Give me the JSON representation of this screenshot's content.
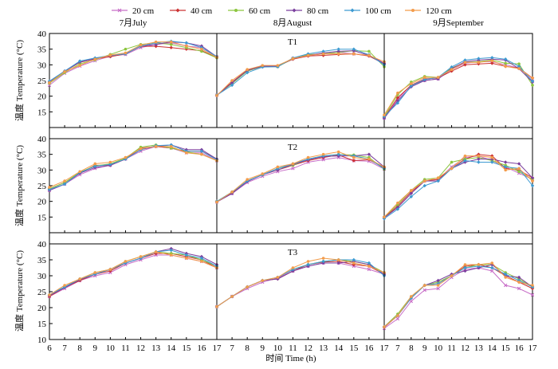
{
  "chart_data": {
    "type": "line",
    "legend_position": "top",
    "grid": false,
    "x_ticks": [
      6,
      7,
      8,
      9,
      10,
      11,
      12,
      13,
      14,
      15,
      16,
      17
    ],
    "ylim": [
      10,
      40
    ],
    "y_ticks": [
      10,
      15,
      20,
      25,
      30,
      35,
      40
    ],
    "xlabel": "时间 Time (h)",
    "ylabel": "温度 Temperature (°C)",
    "column_titles": [
      "7月July",
      "8月August",
      "9月September"
    ],
    "row_titles": [
      "T1",
      "T2",
      "T3"
    ],
    "series": [
      {
        "name": "20 cm",
        "color": "#c86fc8",
        "marker": "x"
      },
      {
        "name": "40 cm",
        "color": "#cc3333",
        "marker": "diamond"
      },
      {
        "name": "60 cm",
        "color": "#8cc63f",
        "marker": "circle"
      },
      {
        "name": "80 cm",
        "color": "#7b3f9e",
        "marker": "diamond"
      },
      {
        "name": "100 cm",
        "color": "#3d9ad1",
        "marker": "diamond"
      },
      {
        "name": "120 cm",
        "color": "#f39c4b",
        "marker": "circle"
      }
    ],
    "panels": [
      {
        "row": "T1",
        "column": "7月July",
        "x": [
          6,
          7,
          8,
          9,
          10,
          11,
          12,
          13,
          14,
          15,
          16,
          17
        ],
        "values": [
          [
            23.5,
            27.3,
            29.6,
            31.3,
            32.8,
            33.3,
            35.5,
            36.5,
            37.0,
            36.0,
            35.5,
            32.5
          ],
          [
            24.5,
            27.9,
            30.8,
            31.9,
            32.6,
            33.5,
            35.9,
            35.9,
            35.5,
            35.0,
            34.5,
            32.3
          ],
          [
            24.1,
            27.5,
            30.3,
            31.6,
            33.3,
            35.0,
            36.5,
            37.0,
            36.5,
            35.5,
            34.3,
            32.2
          ],
          [
            24.5,
            28.0,
            30.9,
            32.0,
            33.0,
            33.5,
            36.0,
            36.5,
            37.3,
            37.0,
            36.0,
            32.6
          ],
          [
            24.8,
            28.0,
            31.2,
            32.2,
            33.0,
            33.5,
            36.0,
            37.0,
            37.5,
            37.0,
            35.5,
            32.6
          ],
          [
            24.3,
            27.8,
            29.8,
            31.8,
            33.1,
            33.8,
            36.3,
            37.3,
            37.3,
            36.0,
            35.0,
            32.4
          ]
        ]
      },
      {
        "row": "T1",
        "column": "8月August",
        "x": [
          6,
          7,
          8,
          9,
          10,
          11,
          12,
          13,
          14,
          15,
          16,
          17
        ],
        "values": [
          [
            20.3,
            24.5,
            28.0,
            29.5,
            29.5,
            32.0,
            33.0,
            33.5,
            34.0,
            33.5,
            33.0,
            30.5
          ],
          [
            20.3,
            24.5,
            28.3,
            29.6,
            29.6,
            31.8,
            32.8,
            33.0,
            33.3,
            33.5,
            32.8,
            30.3
          ],
          [
            20.3,
            24.0,
            28.0,
            29.5,
            29.4,
            32.0,
            33.3,
            33.5,
            34.0,
            34.5,
            34.3,
            29.4
          ],
          [
            20.2,
            24.3,
            28.2,
            29.6,
            29.5,
            32.0,
            33.0,
            33.8,
            34.3,
            34.5,
            33.0,
            30.5
          ],
          [
            20.3,
            23.5,
            27.5,
            29.3,
            29.4,
            32.2,
            33.5,
            34.3,
            35.0,
            35.0,
            33.2,
            30.0
          ],
          [
            20.2,
            25.0,
            28.5,
            29.8,
            29.8,
            32.0,
            33.0,
            33.5,
            33.5,
            33.5,
            33.0,
            31.0
          ]
        ]
      },
      {
        "row": "T1",
        "column": "9月September",
        "x": [
          6,
          7,
          8,
          9,
          10,
          11,
          12,
          13,
          14,
          15,
          16,
          17
        ],
        "values": [
          [
            13.0,
            19.0,
            23.5,
            25.0,
            25.5,
            28.5,
            30.5,
            31.0,
            31.0,
            30.0,
            29.0,
            25.5
          ],
          [
            13.2,
            19.5,
            23.5,
            25.5,
            25.8,
            28.0,
            30.0,
            30.3,
            30.5,
            29.5,
            29.0,
            25.8
          ],
          [
            13.5,
            20.5,
            24.5,
            26.3,
            26.0,
            29.0,
            30.8,
            31.0,
            31.5,
            30.5,
            30.3,
            23.5
          ],
          [
            13.0,
            18.5,
            23.0,
            25.0,
            25.5,
            28.8,
            31.0,
            31.5,
            31.8,
            31.5,
            28.8,
            24.5
          ],
          [
            13.5,
            17.8,
            23.3,
            25.3,
            26.0,
            29.3,
            31.5,
            32.0,
            32.3,
            31.8,
            29.5,
            24.8
          ],
          [
            14.0,
            21.0,
            24.0,
            26.0,
            26.0,
            28.5,
            30.8,
            30.8,
            31.3,
            29.5,
            28.8,
            25.8
          ]
        ]
      },
      {
        "row": "T2",
        "column": "7月July",
        "x": [
          6,
          7,
          8,
          9,
          10,
          11,
          12,
          13,
          14,
          15,
          16,
          17
        ],
        "values": [
          [
            23.5,
            25.5,
            28.5,
            30.5,
            31.5,
            33.5,
            36.0,
            37.5,
            37.0,
            35.5,
            35.5,
            33.0
          ],
          [
            24.0,
            26.0,
            29.0,
            31.5,
            31.5,
            33.5,
            37.0,
            37.5,
            37.0,
            36.0,
            36.0,
            33.5
          ],
          [
            24.0,
            26.0,
            29.3,
            31.3,
            32.0,
            33.8,
            37.3,
            38.0,
            37.0,
            35.8,
            35.0,
            33.0
          ],
          [
            23.5,
            25.5,
            29.0,
            30.8,
            31.5,
            33.5,
            36.5,
            37.5,
            38.0,
            36.5,
            36.5,
            33.5
          ],
          [
            23.8,
            25.5,
            29.2,
            31.2,
            31.8,
            33.5,
            36.5,
            37.8,
            38.0,
            36.0,
            36.0,
            33.3
          ],
          [
            24.5,
            26.5,
            29.5,
            32.0,
            32.5,
            34.0,
            36.8,
            37.5,
            37.5,
            35.5,
            35.0,
            33.0
          ]
        ]
      },
      {
        "row": "T2",
        "column": "8月August",
        "x": [
          6,
          7,
          8,
          9,
          10,
          11,
          12,
          13,
          14,
          15,
          16,
          17
        ],
        "values": [
          [
            19.8,
            22.5,
            26.0,
            28.0,
            29.5,
            30.5,
            32.5,
            33.3,
            34.0,
            33.0,
            32.8,
            30.3
          ],
          [
            20.0,
            22.8,
            26.5,
            28.5,
            30.0,
            31.5,
            33.0,
            34.0,
            34.8,
            33.0,
            33.3,
            30.8
          ],
          [
            20.0,
            23.0,
            26.5,
            28.5,
            30.5,
            31.5,
            33.5,
            34.5,
            35.0,
            34.8,
            34.0,
            30.3
          ],
          [
            19.8,
            22.5,
            26.3,
            28.5,
            30.0,
            31.8,
            33.3,
            34.3,
            34.5,
            34.5,
            35.0,
            31.0
          ],
          [
            20.0,
            23.0,
            26.5,
            28.5,
            30.5,
            32.0,
            33.5,
            34.5,
            35.0,
            34.5,
            33.5,
            30.5
          ],
          [
            19.8,
            23.0,
            27.0,
            28.8,
            31.0,
            32.0,
            34.0,
            35.0,
            35.8,
            34.0,
            33.5,
            31.0
          ]
        ]
      },
      {
        "row": "T2",
        "column": "9月September",
        "x": [
          6,
          7,
          8,
          9,
          10,
          11,
          12,
          13,
          14,
          15,
          16,
          17
        ],
        "values": [
          [
            14.8,
            18.5,
            23.0,
            26.5,
            27.0,
            31.0,
            34.0,
            34.5,
            33.0,
            31.0,
            29.0,
            27.0
          ],
          [
            14.8,
            18.5,
            23.0,
            26.5,
            27.0,
            30.5,
            33.5,
            35.0,
            34.5,
            30.5,
            30.0,
            27.5
          ],
          [
            15.0,
            19.0,
            23.5,
            27.0,
            27.5,
            32.5,
            33.5,
            34.0,
            33.0,
            31.5,
            29.5,
            27.0
          ],
          [
            14.8,
            18.0,
            22.5,
            26.5,
            26.5,
            30.5,
            32.5,
            33.5,
            33.5,
            32.5,
            32.0,
            27.5
          ],
          [
            14.5,
            17.5,
            21.5,
            25.0,
            26.5,
            30.5,
            33.0,
            32.5,
            32.5,
            31.0,
            30.5,
            25.0
          ],
          [
            15.0,
            19.5,
            23.5,
            26.5,
            27.5,
            30.5,
            34.5,
            34.5,
            34.0,
            30.0,
            30.5,
            26.5
          ]
        ]
      },
      {
        "row": "T3",
        "column": "7月July",
        "x": [
          6,
          7,
          8,
          9,
          10,
          11,
          12,
          13,
          14,
          15,
          16,
          17
        ],
        "values": [
          [
            23.5,
            26.0,
            28.5,
            30.0,
            31.0,
            33.5,
            35.0,
            36.5,
            36.5,
            35.5,
            34.5,
            32.5
          ],
          [
            23.5,
            26.3,
            28.5,
            30.5,
            31.5,
            34.0,
            35.5,
            37.0,
            37.0,
            36.0,
            35.0,
            32.5
          ],
          [
            24.0,
            26.5,
            29.0,
            31.0,
            32.0,
            34.5,
            36.0,
            37.5,
            37.0,
            36.5,
            35.0,
            33.0
          ],
          [
            23.8,
            26.3,
            28.8,
            30.5,
            32.0,
            34.0,
            35.5,
            37.5,
            38.5,
            37.0,
            36.0,
            33.5
          ],
          [
            24.0,
            26.5,
            29.0,
            30.5,
            32.0,
            34.0,
            35.5,
            37.5,
            38.0,
            36.5,
            35.5,
            33.0
          ],
          [
            24.0,
            27.0,
            29.0,
            31.0,
            32.0,
            34.5,
            36.0,
            37.5,
            36.5,
            35.5,
            34.5,
            32.5
          ]
        ]
      },
      {
        "row": "T3",
        "column": "8月August",
        "x": [
          6,
          7,
          8,
          9,
          10,
          11,
          12,
          13,
          14,
          15,
          16,
          17
        ],
        "values": [
          [
            20.3,
            23.5,
            26.0,
            28.0,
            29.3,
            31.5,
            33.0,
            34.0,
            34.0,
            33.0,
            32.0,
            30.5
          ],
          [
            20.3,
            23.5,
            26.5,
            28.5,
            29.0,
            31.5,
            33.5,
            34.3,
            34.5,
            33.5,
            33.0,
            30.5
          ],
          [
            20.3,
            23.5,
            26.5,
            28.5,
            29.5,
            32.0,
            33.5,
            34.5,
            35.0,
            34.5,
            33.5,
            31.0
          ],
          [
            20.3,
            23.5,
            26.5,
            28.5,
            29.0,
            31.5,
            33.0,
            34.0,
            34.0,
            34.5,
            33.5,
            30.5
          ],
          [
            20.3,
            23.5,
            26.5,
            28.5,
            29.5,
            32.0,
            33.5,
            34.5,
            35.0,
            35.0,
            34.0,
            30.0
          ],
          [
            20.3,
            23.5,
            26.5,
            28.5,
            29.5,
            32.5,
            34.5,
            35.5,
            35.0,
            34.0,
            33.0,
            31.0
          ]
        ]
      },
      {
        "row": "T3",
        "column": "9月September",
        "x": [
          6,
          7,
          8,
          9,
          10,
          11,
          12,
          13,
          14,
          15,
          16,
          17
        ],
        "values": [
          [
            13.5,
            16.5,
            22.0,
            25.5,
            26.0,
            29.5,
            32.0,
            32.5,
            31.5,
            27.0,
            26.0,
            24.0
          ],
          [
            13.8,
            17.5,
            23.0,
            27.0,
            27.5,
            30.0,
            33.0,
            33.5,
            32.5,
            30.0,
            28.0,
            26.0
          ],
          [
            14.0,
            18.0,
            23.5,
            27.0,
            28.0,
            30.0,
            32.5,
            33.5,
            33.5,
            31.0,
            29.0,
            26.5
          ],
          [
            14.0,
            17.5,
            23.0,
            27.0,
            28.5,
            30.5,
            31.5,
            32.5,
            33.5,
            30.0,
            29.5,
            26.5
          ],
          [
            14.0,
            17.5,
            23.0,
            27.0,
            27.5,
            30.0,
            32.5,
            33.0,
            32.5,
            30.5,
            28.5,
            26.5
          ],
          [
            14.0,
            17.5,
            23.5,
            27.0,
            27.0,
            30.0,
            33.5,
            33.5,
            34.0,
            29.5,
            28.0,
            27.0
          ]
        ]
      }
    ]
  }
}
